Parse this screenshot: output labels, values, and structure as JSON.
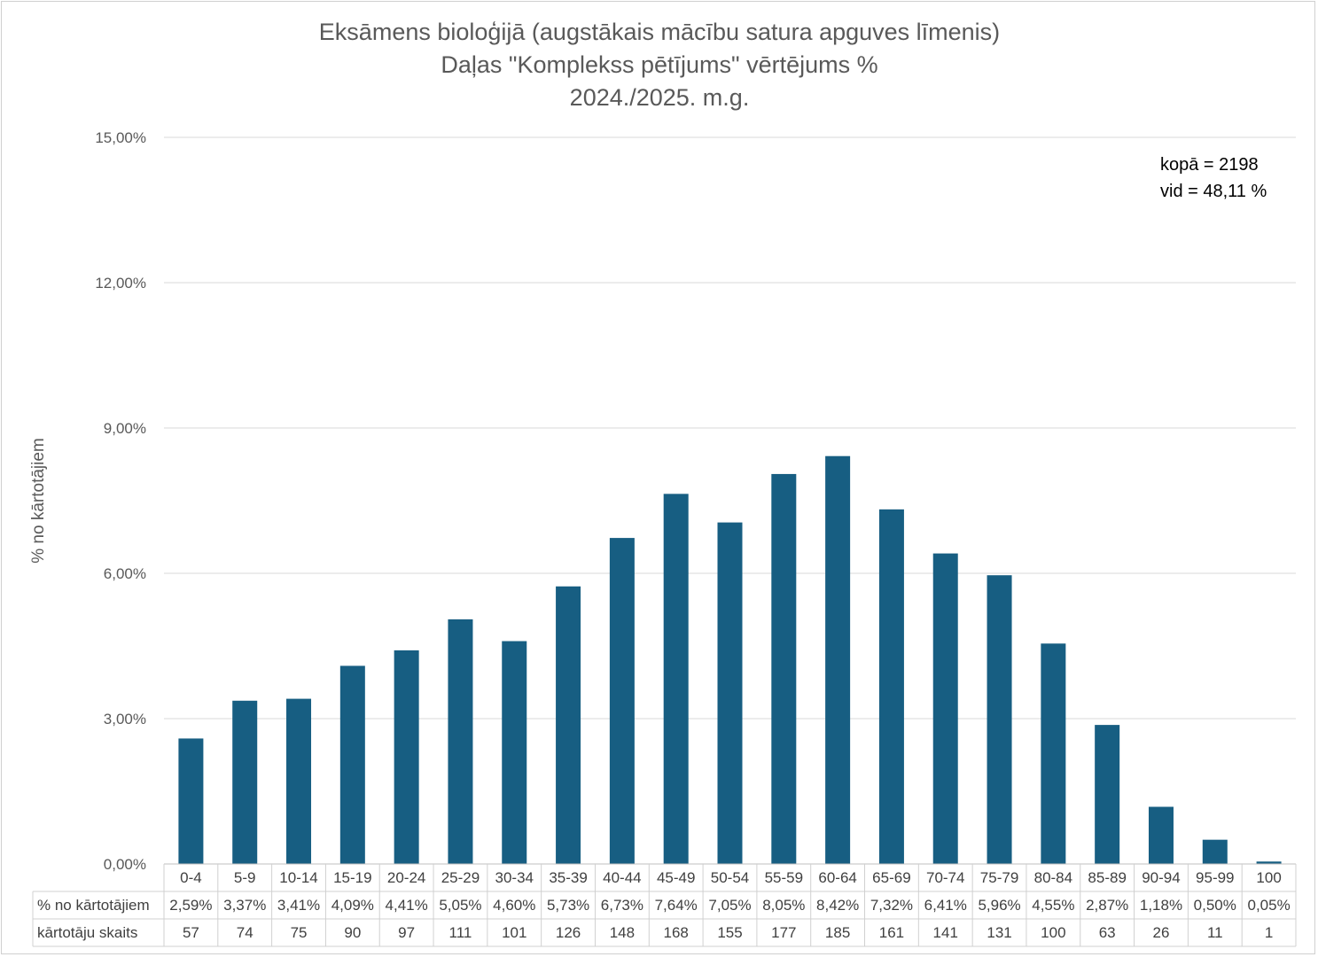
{
  "chart_data": {
    "type": "bar",
    "title": [
      "Eksāmens bioloģijā (augstākais mācību satura apguves līmenis)",
      "Daļas \"Komplekss pētījums\" vērtējums %",
      "2024./2025. m.g."
    ],
    "ylabel": "% no kārtotājiem",
    "ylim": [
      0,
      15
    ],
    "yticks": [
      "0,00%",
      "3,00%",
      "6,00%",
      "9,00%",
      "12,00%",
      "15,00%"
    ],
    "ytick_values": [
      0,
      3,
      6,
      9,
      12,
      15
    ],
    "grid": true,
    "bar_color": "#175E82",
    "categories": [
      "0-4",
      "5-9",
      "10-14",
      "15-19",
      "20-24",
      "25-29",
      "30-34",
      "35-39",
      "40-44",
      "45-49",
      "50-54",
      "55-59",
      "60-64",
      "65-69",
      "70-74",
      "75-79",
      "80-84",
      "85-89",
      "90-94",
      "95-99",
      "100"
    ],
    "series": [
      {
        "name": "% no kārtotājiem",
        "values": [
          2.59,
          3.37,
          3.41,
          4.09,
          4.41,
          5.05,
          4.6,
          5.73,
          6.73,
          7.64,
          7.05,
          8.05,
          8.42,
          7.32,
          6.41,
          5.96,
          4.55,
          2.87,
          1.18,
          0.5,
          0.05
        ],
        "labels": [
          "2,59%",
          "3,37%",
          "3,41%",
          "4,09%",
          "4,41%",
          "5,05%",
          "4,60%",
          "5,73%",
          "6,73%",
          "7,64%",
          "7,05%",
          "8,05%",
          "8,42%",
          "7,32%",
          "6,41%",
          "5,96%",
          "4,55%",
          "2,87%",
          "1,18%",
          "0,50%",
          "0,05%"
        ]
      }
    ],
    "table": {
      "rows": [
        {
          "header": "% no kārtotājiem",
          "series_index": 0
        },
        {
          "header": "kārtotāju skaits",
          "values": [
            "57",
            "74",
            "75",
            "90",
            "97",
            "111",
            "101",
            "126",
            "148",
            "168",
            "155",
            "177",
            "185",
            "161",
            "141",
            "131",
            "100",
            "63",
            "26",
            "11",
            "1"
          ]
        }
      ]
    },
    "annotation": [
      "kopā = 2198",
      "vid = 48,11 %"
    ]
  }
}
